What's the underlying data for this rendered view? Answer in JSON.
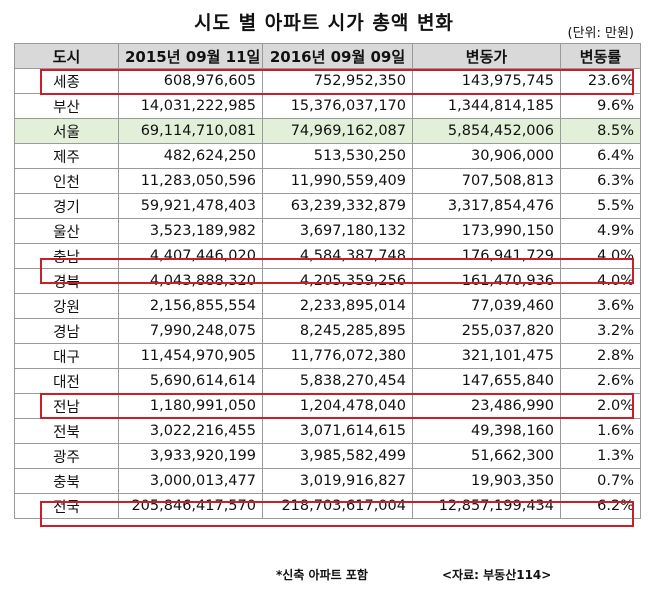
{
  "title": "시도 별 아파트 시가 총액 변화",
  "unit": "(단위: 만원)",
  "headers": [
    "도시",
    "2015년 09월 11일",
    "2016년 09월 09일",
    "변동가",
    "변동률"
  ],
  "rows": [
    {
      "region": "세종",
      "v2015": "608,976,605",
      "v2016": "752,952,350",
      "change": "143,975,745",
      "rate": "23.6%"
    },
    {
      "region": "부산",
      "v2015": "14,031,222,985",
      "v2016": "15,376,037,170",
      "change": "1,344,814,185",
      "rate": "9.6%"
    },
    {
      "region": "서울",
      "v2015": "69,114,710,081",
      "v2016": "74,969,162,087",
      "change": "5,854,452,006",
      "rate": "8.5%"
    },
    {
      "region": "제주",
      "v2015": "482,624,250",
      "v2016": "513,530,250",
      "change": "30,906,000",
      "rate": "6.4%"
    },
    {
      "region": "인천",
      "v2015": "11,283,050,596",
      "v2016": "11,990,559,409",
      "change": "707,508,813",
      "rate": "6.3%"
    },
    {
      "region": "경기",
      "v2015": "59,921,478,403",
      "v2016": "63,239,332,879",
      "change": "3,317,854,476",
      "rate": "5.5%"
    },
    {
      "region": "울산",
      "v2015": "3,523,189,982",
      "v2016": "3,697,180,132",
      "change": "173,990,150",
      "rate": "4.9%"
    },
    {
      "region": "충남",
      "v2015": "4,407,446,020",
      "v2016": "4,584,387,748",
      "change": "176,941,729",
      "rate": "4.0%"
    },
    {
      "region": "경북",
      "v2015": "4,043,888,320",
      "v2016": "4,205,359,256",
      "change": "161,470,936",
      "rate": "4.0%"
    },
    {
      "region": "강원",
      "v2015": "2,156,855,554",
      "v2016": "2,233,895,014",
      "change": "77,039,460",
      "rate": "3.6%"
    },
    {
      "region": "경남",
      "v2015": "7,990,248,075",
      "v2016": "8,245,285,895",
      "change": "255,037,820",
      "rate": "3.2%"
    },
    {
      "region": "대구",
      "v2015": "11,454,970,905",
      "v2016": "11,776,072,380",
      "change": "321,101,475",
      "rate": "2.8%"
    },
    {
      "region": "대전",
      "v2015": "5,690,614,614",
      "v2016": "5,838,270,454",
      "change": "147,655,840",
      "rate": "2.6%"
    },
    {
      "region": "전남",
      "v2015": "1,180,991,050",
      "v2016": "1,204,478,040",
      "change": "23,486,990",
      "rate": "2.0%"
    },
    {
      "region": "전북",
      "v2015": "3,022,216,455",
      "v2016": "3,071,614,615",
      "change": "49,398,160",
      "rate": "1.6%"
    },
    {
      "region": "광주",
      "v2015": "3,933,920,199",
      "v2016": "3,985,582,499",
      "change": "51,662,300",
      "rate": "1.3%"
    },
    {
      "region": "충북",
      "v2015": "3,000,013,477",
      "v2016": "3,019,916,827",
      "change": "19,903,350",
      "rate": "0.7%"
    },
    {
      "region": "전국",
      "v2015": "205,846,417,570",
      "v2016": "218,703,617,004",
      "change": "12,857,199,434",
      "rate": "6.2%"
    }
  ],
  "highlight_color": "#c8202a",
  "shaded_row_color": "#e2efd9",
  "footnote": "*신축 아파트 포함",
  "source": "<자료: 부동산114>"
}
